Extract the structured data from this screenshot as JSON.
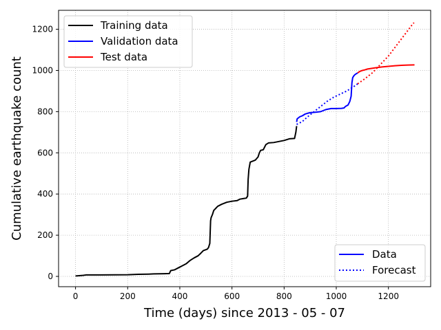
{
  "chart_data": {
    "type": "line",
    "xlabel": "Time (days) since 2013 - 05 - 07",
    "ylabel": "Cumulative earthquake count",
    "xlim": [
      -65,
      1362
    ],
    "ylim": [
      -50,
      1292
    ],
    "xticks": [
      0,
      200,
      400,
      600,
      800,
      1000,
      1200
    ],
    "yticks": [
      0,
      200,
      400,
      600,
      800,
      1000,
      1200
    ],
    "grid": true,
    "legend_top_left": [
      "Training data",
      "Validation data",
      "Test data"
    ],
    "legend_bottom_right": [
      "Data",
      "Forecast"
    ],
    "colors": {
      "training": "#000000",
      "validation": "#0000ff",
      "test": "#ff0000",
      "grid": "#b0b0b0"
    },
    "series": [
      {
        "name": "Training data",
        "style": "solid",
        "color": "#000000",
        "points": [
          [
            0,
            2
          ],
          [
            10,
            3
          ],
          [
            30,
            5
          ],
          [
            40,
            7
          ],
          [
            100,
            7
          ],
          [
            200,
            8
          ],
          [
            240,
            10
          ],
          [
            280,
            11
          ],
          [
            300,
            12
          ],
          [
            340,
            13
          ],
          [
            360,
            14
          ],
          [
            365,
            28
          ],
          [
            380,
            32
          ],
          [
            395,
            42
          ],
          [
            410,
            52
          ],
          [
            425,
            62
          ],
          [
            440,
            78
          ],
          [
            455,
            90
          ],
          [
            470,
            100
          ],
          [
            480,
            112
          ],
          [
            490,
            125
          ],
          [
            505,
            132
          ],
          [
            510,
            140
          ],
          [
            515,
            160
          ],
          [
            518,
            270
          ],
          [
            520,
            285
          ],
          [
            525,
            300
          ],
          [
            530,
            320
          ],
          [
            545,
            340
          ],
          [
            560,
            350
          ],
          [
            580,
            360
          ],
          [
            600,
            365
          ],
          [
            620,
            368
          ],
          [
            630,
            375
          ],
          [
            645,
            378
          ],
          [
            655,
            380
          ],
          [
            660,
            390
          ],
          [
            662,
            470
          ],
          [
            665,
            520
          ],
          [
            670,
            555
          ],
          [
            680,
            560
          ],
          [
            690,
            565
          ],
          [
            700,
            580
          ],
          [
            705,
            600
          ],
          [
            710,
            612
          ],
          [
            720,
            615
          ],
          [
            730,
            640
          ],
          [
            740,
            648
          ],
          [
            760,
            650
          ],
          [
            780,
            655
          ],
          [
            800,
            660
          ],
          [
            820,
            668
          ],
          [
            840,
            670
          ],
          [
            845,
            700
          ],
          [
            848,
            730
          ]
        ]
      },
      {
        "name": "Validation data",
        "style": "solid",
        "color": "#0000ff",
        "points": [
          [
            848,
            750
          ],
          [
            850,
            765
          ],
          [
            860,
            775
          ],
          [
            870,
            780
          ],
          [
            880,
            788
          ],
          [
            890,
            792
          ],
          [
            900,
            795
          ],
          [
            920,
            797
          ],
          [
            940,
            800
          ],
          [
            960,
            810
          ],
          [
            980,
            815
          ],
          [
            1000,
            815
          ],
          [
            1020,
            816
          ],
          [
            1030,
            818
          ],
          [
            1035,
            825
          ],
          [
            1045,
            832
          ],
          [
            1052,
            850
          ],
          [
            1057,
            875
          ],
          [
            1060,
            940
          ],
          [
            1063,
            965
          ],
          [
            1068,
            975
          ],
          [
            1072,
            980
          ],
          [
            1078,
            985
          ],
          [
            1082,
            988
          ]
        ]
      },
      {
        "name": "Test data",
        "style": "solid",
        "color": "#ff0000",
        "points": [
          [
            1082,
            988
          ],
          [
            1090,
            995
          ],
          [
            1100,
            1000
          ],
          [
            1110,
            1003
          ],
          [
            1120,
            1007
          ],
          [
            1135,
            1010
          ],
          [
            1150,
            1013
          ],
          [
            1175,
            1017
          ],
          [
            1200,
            1020
          ],
          [
            1225,
            1023
          ],
          [
            1250,
            1025
          ],
          [
            1275,
            1026
          ],
          [
            1300,
            1027
          ]
        ]
      },
      {
        "name": "Validation forecast",
        "style": "dotted",
        "color": "#0000ff",
        "points": [
          [
            848,
            738
          ],
          [
            870,
            752
          ],
          [
            890,
            775
          ],
          [
            915,
            800
          ],
          [
            940,
            825
          ],
          [
            965,
            850
          ],
          [
            990,
            870
          ],
          [
            1015,
            885
          ],
          [
            1040,
            900
          ],
          [
            1065,
            920
          ],
          [
            1082,
            935
          ]
        ]
      },
      {
        "name": "Test forecast",
        "style": "dotted",
        "color": "#ff0000",
        "points": [
          [
            1082,
            935
          ],
          [
            1110,
            960
          ],
          [
            1140,
            990
          ],
          [
            1170,
            1030
          ],
          [
            1200,
            1070
          ],
          [
            1230,
            1120
          ],
          [
            1260,
            1170
          ],
          [
            1290,
            1220
          ],
          [
            1298,
            1232
          ]
        ]
      }
    ]
  }
}
